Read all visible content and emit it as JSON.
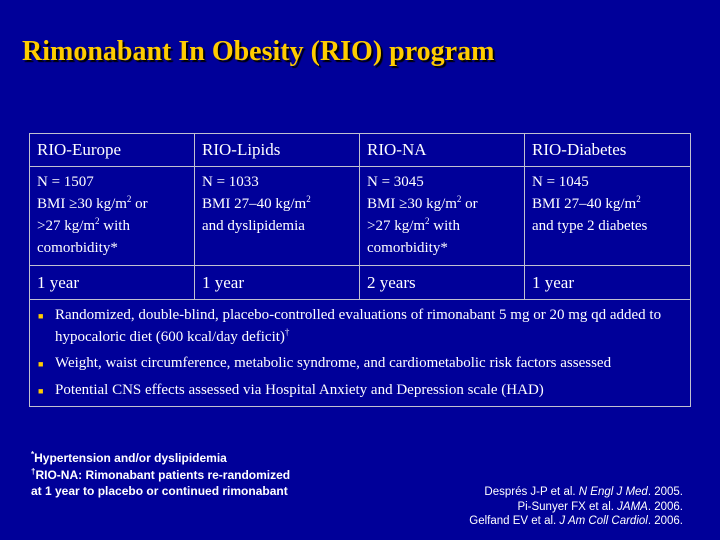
{
  "title": "Rimonabant In Obesity (RIO) program",
  "table": {
    "headers": [
      "RIO-Europe",
      "RIO-Lipids",
      "RIO-NA",
      "RIO-Diabetes"
    ],
    "n_values": [
      "N = 1507",
      "N = 1033",
      "N = 3045",
      "N = 1045"
    ],
    "criteria": [
      {
        "l1": "BMI ≥30 kg/m",
        "l1_sup": "2",
        "l1_tail": " or",
        "l2": ">27 kg/m",
        "l2_sup": "2",
        "l2_tail": " with",
        "l3": "comorbidity*"
      },
      {
        "l1": "BMI 27–40 kg/m",
        "l1_sup": "2",
        "l1_tail": "",
        "l2": "and dyslipidemia",
        "l2_sup": "",
        "l2_tail": "",
        "l3": ""
      },
      {
        "l1": "BMI ≥30 kg/m",
        "l1_sup": "2",
        "l1_tail": " or",
        "l2": ">27 kg/m",
        "l2_sup": "2",
        "l2_tail": " with",
        "l3": "comorbidity*"
      },
      {
        "l1": "BMI 27–40 kg/m",
        "l1_sup": "2",
        "l1_tail": "",
        "l2": "and type 2 diabetes",
        "l2_sup": "",
        "l2_tail": "",
        "l3": ""
      }
    ],
    "durations": [
      "1 year",
      "1 year",
      "2 years",
      "1 year"
    ],
    "bullets": [
      {
        "text": "Randomized, double-blind, placebo-controlled evaluations of rimonabant 5 mg or 20 mg qd added to hypocaloric diet (600 kcal/day deficit)",
        "sup": "†"
      },
      {
        "text": "Weight, waist circumference, metabolic syndrome, and cardiometabolic risk factors assessed",
        "sup": ""
      },
      {
        "text": "Potential CNS effects assessed via Hospital Anxiety and Depression scale (HAD)",
        "sup": ""
      }
    ]
  },
  "footnotes": {
    "f1_mark": "*",
    "f1": "Hypertension and/or dyslipidemia",
    "f2_mark": "†",
    "f2_line1": "RIO-NA: Rimonabant patients re-randomized",
    "f2_line2": "at 1 year to placebo or continued rimonabant"
  },
  "references": [
    {
      "authors": "Després J-P et al. ",
      "journal": "N Engl J Med",
      "year": ". 2005."
    },
    {
      "authors": "Pi-Sunyer FX et al. ",
      "journal": "JAMA",
      "year": ". 2006."
    },
    {
      "authors": "Gelfand EV et al. ",
      "journal": "J Am Coll Cardiol",
      "year": ". 2006."
    }
  ],
  "colors": {
    "background": "#000099",
    "title": "#FFCC00",
    "bullet": "#FFCC00",
    "text": "#FFFFFF"
  },
  "icons": {
    "bullet": "square-bullet-icon"
  }
}
